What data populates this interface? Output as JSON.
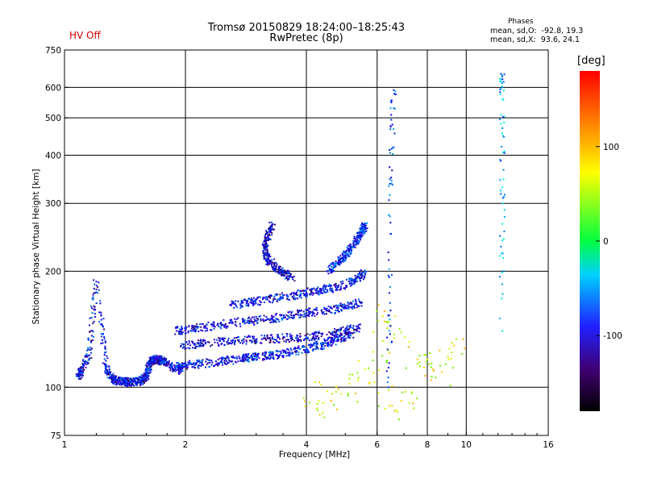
{
  "status_label": "HV Off",
  "title": {
    "line1": "Tromsø 20150829 18:24:00–18:25:43",
    "line2": "RwPretec (8p)"
  },
  "stats": {
    "header": "Phases",
    "o_line": "mean, sd,O:  -92.8, 19.3",
    "x_line": "mean, sd,X:  93.6, 24.1"
  },
  "colorbar": {
    "unit": "[deg]",
    "range": [
      -180,
      180
    ],
    "tick_labels": [
      "100",
      "0",
      "-100"
    ],
    "tick_values": [
      100,
      0,
      -100
    ]
  },
  "chart_data": {
    "type": "scatter",
    "title": "Tromsø 20150829 18:24:00–18:25:43",
    "subtitle": "RwPretec (8p)",
    "xlabel": "Frequency [MHz]",
    "ylabel": "Stationary phase Virtual Height [km]",
    "xscale": "log",
    "yscale": "log",
    "xlim": [
      1,
      16
    ],
    "ylim": [
      75,
      750
    ],
    "x_ticks": [
      1,
      2,
      4,
      6,
      8,
      10,
      16
    ],
    "x_tick_labels": [
      "1",
      "2",
      "4",
      "6",
      "8",
      "10",
      "16"
    ],
    "x_gridlines": [
      2,
      4,
      6,
      8,
      10
    ],
    "y_ticks": [
      75,
      100,
      200,
      300,
      400,
      500,
      600,
      750
    ],
    "y_tick_labels": [
      "75",
      "100",
      "200",
      "300",
      "400",
      "500",
      "600",
      "750"
    ],
    "y_gridlines": [
      100,
      200,
      300,
      400,
      500,
      600
    ],
    "grid": true,
    "color_encoding": "phase (deg)",
    "series": [
      {
        "kind": "dense_band",
        "points": [
          [
            1.08,
            107
          ],
          [
            1.1,
            110
          ],
          [
            1.15,
            121
          ],
          [
            1.2,
            188
          ],
          [
            1.27,
            113
          ],
          [
            1.31,
            105
          ],
          [
            1.35,
            104
          ],
          [
            1.4,
            103.5
          ],
          [
            1.45,
            103
          ],
          [
            1.5,
            103.5
          ],
          [
            1.55,
            104
          ],
          [
            1.6,
            107
          ],
          [
            1.62,
            112
          ],
          [
            1.65,
            117
          ],
          [
            1.68,
            118
          ],
          [
            1.72,
            118
          ],
          [
            1.75,
            117
          ],
          [
            1.85,
            113
          ],
          [
            1.95,
            110
          ]
        ],
        "phase_mean": -110
      },
      {
        "kind": "dense_band",
        "points": [
          [
            1.9,
            113
          ],
          [
            2.0,
            114
          ],
          [
            2.2,
            115
          ],
          [
            2.5,
            117
          ],
          [
            2.8,
            119
          ],
          [
            3.0,
            120
          ],
          [
            3.3,
            121
          ],
          [
            3.6,
            123
          ],
          [
            4.0,
            126
          ],
          [
            4.4,
            129
          ],
          [
            4.8,
            133
          ],
          [
            5.2,
            138
          ]
        ],
        "phase_mean": -105
      },
      {
        "kind": "dense_band",
        "points": [
          [
            1.95,
            128
          ],
          [
            2.2,
            130
          ],
          [
            2.6,
            132
          ],
          [
            3.0,
            133
          ],
          [
            3.5,
            134
          ],
          [
            4.0,
            135
          ],
          [
            4.5,
            137
          ],
          [
            5.0,
            140
          ],
          [
            5.4,
            143
          ]
        ],
        "phase_mean": -115
      },
      {
        "kind": "dense_band",
        "points": [
          [
            1.9,
            140
          ],
          [
            2.1,
            142
          ],
          [
            2.4,
            145
          ],
          [
            2.8,
            148
          ],
          [
            3.2,
            150
          ],
          [
            3.6,
            153
          ],
          [
            4.0,
            156
          ],
          [
            4.5,
            158
          ],
          [
            5.0,
            162
          ],
          [
            5.5,
            166
          ]
        ],
        "phase_mean": -110
      },
      {
        "kind": "dense_band",
        "points": [
          [
            2.6,
            163
          ],
          [
            2.9,
            166
          ],
          [
            3.2,
            169
          ],
          [
            3.6,
            172
          ],
          [
            4.0,
            176
          ],
          [
            4.4,
            179
          ],
          [
            4.8,
            182
          ],
          [
            5.3,
            190
          ],
          [
            5.6,
            198
          ]
        ],
        "phase_mean": -108
      },
      {
        "kind": "dense_band",
        "points": [
          [
            3.3,
            265
          ],
          [
            3.2,
            245
          ],
          [
            3.15,
            230
          ],
          [
            3.2,
            215
          ],
          [
            3.35,
            205
          ],
          [
            3.5,
            198
          ],
          [
            3.7,
            193
          ]
        ],
        "phase_mean": -115
      },
      {
        "kind": "dense_band",
        "points": [
          [
            4.5,
            200
          ],
          [
            4.8,
            210
          ],
          [
            5.0,
            220
          ],
          [
            5.2,
            232
          ],
          [
            5.4,
            245
          ],
          [
            5.5,
            255
          ],
          [
            5.6,
            262
          ]
        ],
        "phase_mean": -100
      },
      {
        "kind": "sparse_cloud",
        "points": [
          [
            4.2,
            95
          ],
          [
            4.5,
            90
          ],
          [
            5.0,
            100
          ],
          [
            5.5,
            110
          ],
          [
            6.0,
            120
          ],
          [
            6.5,
            90
          ],
          [
            7.0,
            95
          ],
          [
            7.6,
            120
          ],
          [
            8.0,
            115
          ],
          [
            8.8,
            110
          ],
          [
            9.2,
            125
          ],
          [
            6.2,
            150
          ],
          [
            6.6,
            140
          ]
        ],
        "phase_mean": 95
      },
      {
        "kind": "column",
        "points": [
          [
            6.4,
            100
          ],
          [
            6.45,
            150
          ],
          [
            6.5,
            250
          ],
          [
            6.5,
            350
          ],
          [
            6.55,
            480
          ],
          [
            6.6,
            590
          ]
        ],
        "phase_mean": -90
      },
      {
        "kind": "column",
        "points": [
          [
            12.3,
            140
          ],
          [
            12.3,
            240
          ],
          [
            12.3,
            330
          ],
          [
            12.3,
            470
          ],
          [
            12.3,
            600
          ],
          [
            12.3,
            640
          ]
        ],
        "phase_mean": -60
      }
    ]
  }
}
